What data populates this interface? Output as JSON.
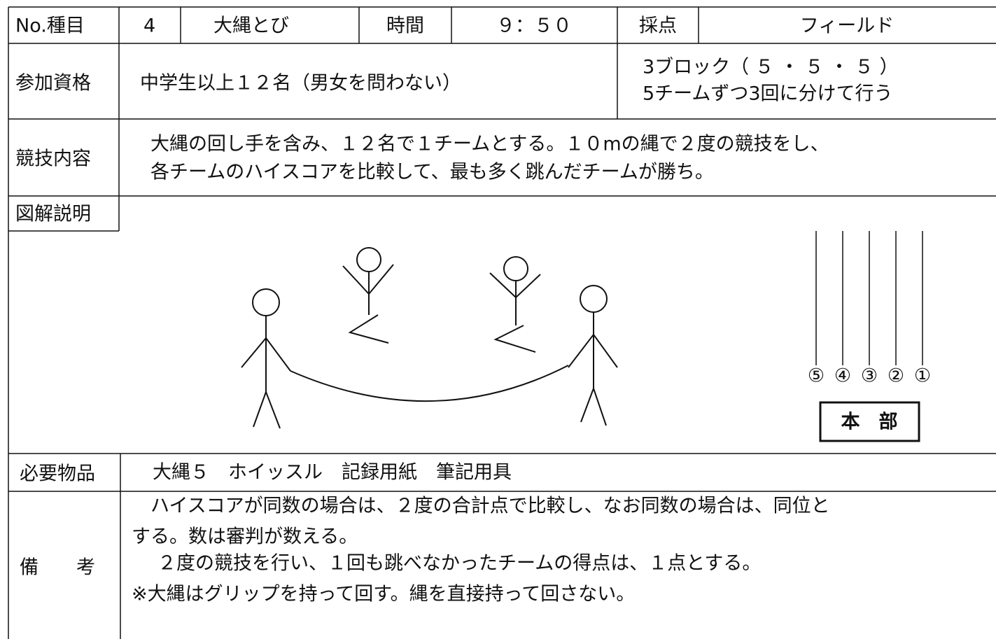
{
  "header": {
    "no_label": "No.種目",
    "no": "4",
    "event": "大縄とび",
    "time_label": "時間",
    "time": "９：５０",
    "scoring_label": "採点",
    "scoring": "フィールド"
  },
  "eligibility": {
    "label": "参加資格",
    "text": "中学生以上１２名（男女を問わない）",
    "blocks": [
      "3ブロック（ ５ ・ ５ ・ ５ ）",
      "5チームずつ3回に分けて行う"
    ]
  },
  "content": {
    "label": "競技内容",
    "lines": [
      "大縄の回し手を含み、１２名で１チームとする。１０mの縄で２度の競技をし、",
      "各チームのハイスコアを比較して、最も多く跳んだチームが勝ち。"
    ]
  },
  "diagram": {
    "label": "図解説明",
    "lanes": [
      "⑤",
      "④",
      "③",
      "②",
      "①"
    ],
    "hq": "本　部"
  },
  "items": {
    "label": "必要物品",
    "text": "大縄５　ホイッスル　記録用紙　筆記用具"
  },
  "remarks": {
    "label": "備　　考",
    "lines": [
      "ハイスコアが同数の場合は、２度の合計点で比較し、なお同数の場合は、同位と",
      "する。数は審判が数える。",
      "２度の競技を行い、１回も跳べなかったチームの得点は、１点とする。",
      "※大縄はグリップを持って回す。縄を直接持って回さない。"
    ]
  }
}
